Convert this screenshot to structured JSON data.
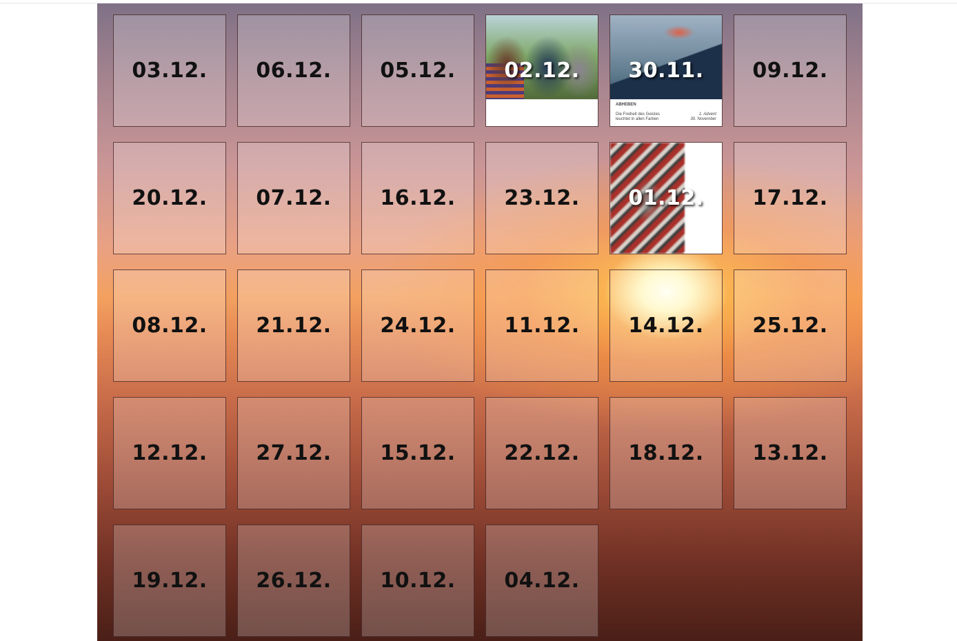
{
  "tiles": [
    {
      "label": "03.12."
    },
    {
      "label": "06.12."
    },
    {
      "label": "05.12."
    },
    {
      "label": "02.12.",
      "opened": true
    },
    {
      "label": "30.11.",
      "opened": true
    },
    {
      "label": "09.12."
    },
    {
      "label": "20.12."
    },
    {
      "label": "07.12."
    },
    {
      "label": "16.12."
    },
    {
      "label": "23.12."
    },
    {
      "label": "01.12.",
      "opened": true
    },
    {
      "label": "17.12."
    },
    {
      "label": "08.12."
    },
    {
      "label": "21.12."
    },
    {
      "label": "24.12."
    },
    {
      "label": "11.12."
    },
    {
      "label": "14.12."
    },
    {
      "label": "25.12."
    },
    {
      "label": "12.12."
    },
    {
      "label": "27.12."
    },
    {
      "label": "15.12."
    },
    {
      "label": "22.12."
    },
    {
      "label": "18.12."
    },
    {
      "label": "13.12."
    },
    {
      "label": "19.12."
    },
    {
      "label": "26.12."
    },
    {
      "label": "10.12."
    },
    {
      "label": "04.12."
    }
  ],
  "card_3011": {
    "title": "ABHEBEN",
    "text_line1": "Die Freiheit des Geistes",
    "text_line2": "leuchtet in allen Farben",
    "advent": "1. Advent",
    "date": "30. November"
  }
}
